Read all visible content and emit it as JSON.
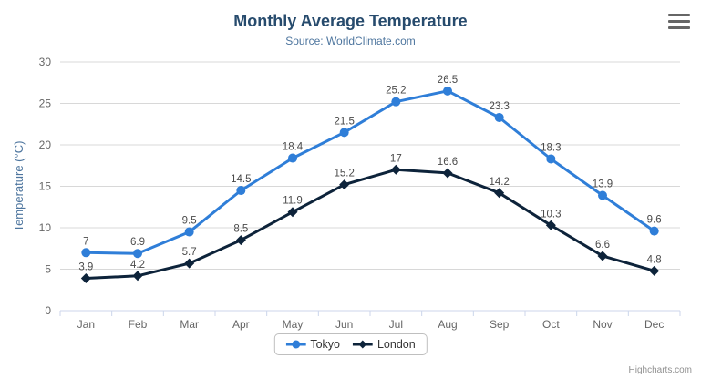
{
  "chart_data": {
    "type": "line",
    "title": "Monthly Average Temperature",
    "subtitle": "Source: WorldClimate.com",
    "categories": [
      "Jan",
      "Feb",
      "Mar",
      "Apr",
      "May",
      "Jun",
      "Jul",
      "Aug",
      "Sep",
      "Oct",
      "Nov",
      "Dec"
    ],
    "series": [
      {
        "name": "Tokyo",
        "color": "#2f7ed8",
        "marker": "circle",
        "values": [
          7,
          6.9,
          9.5,
          14.5,
          18.4,
          21.5,
          25.2,
          26.5,
          23.3,
          18.3,
          13.9,
          9.6
        ]
      },
      {
        "name": "London",
        "color": "#0d233a",
        "marker": "diamond",
        "values": [
          3.9,
          4.2,
          5.7,
          8.5,
          11.9,
          15.2,
          17,
          16.6,
          14.2,
          10.3,
          6.6,
          4.8
        ]
      }
    ],
    "xlabel": "",
    "ylabel": "Temperature (°C)",
    "ylim": [
      0,
      30
    ],
    "yticks": [
      0,
      5,
      10,
      15,
      20,
      25,
      30
    ],
    "grid": true,
    "data_labels": true,
    "legend_position": "bottom-center"
  },
  "credits": {
    "label": "Highcharts.com"
  },
  "icons": {
    "context_menu": "hamburger-menu-icon"
  },
  "colors": {
    "title": "#274b6d",
    "subtitle": "#4d759e",
    "y_axis_title": "#4d759e",
    "axis_label": "#666666",
    "data_label": "#4a4a4a",
    "grid_line": "#d8d8d8",
    "axis_line": "#ccd6eb",
    "legend_text": "#333333",
    "credits_text": "#909090",
    "menu_icon": "#666666"
  }
}
